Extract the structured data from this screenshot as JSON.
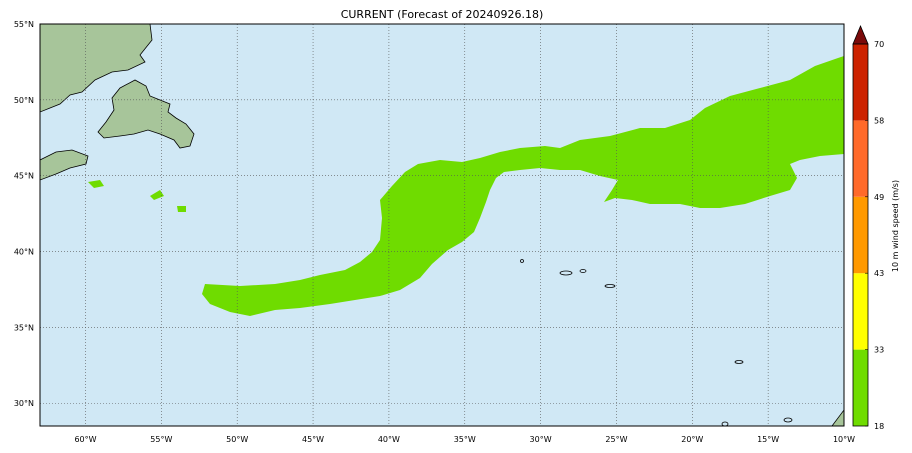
{
  "title": "CURRENT (Forecast of 20240926.18)",
  "map": {
    "lon_labels": [
      "60°W",
      "55°W",
      "50°W",
      "45°W",
      "40°W",
      "35°W",
      "30°W",
      "25°W",
      "20°W",
      "15°W",
      "10°W"
    ],
    "lat_labels": [
      "55°N",
      "50°N",
      "45°N",
      "40°N",
      "35°N",
      "30°N"
    ],
    "lon_range": [
      -63,
      -10
    ],
    "lat_range": [
      28.5,
      55
    ],
    "ocean_color": "#d0e8f5",
    "land_color": "#a7c59a",
    "wind_field_color": "#6fdc00",
    "gridlines": true
  },
  "colorbar": {
    "label": "10 m wind speed (m/s)",
    "ticks": [
      "18",
      "33",
      "43",
      "49",
      "58",
      "70"
    ],
    "tick_values": [
      18,
      33,
      43,
      49,
      58,
      70
    ],
    "colors": [
      "#6fdc00",
      "#ffff00",
      "#ff9900",
      "#ff6a2a",
      "#cc2200"
    ],
    "extend_color": "#7a0a0a"
  }
}
